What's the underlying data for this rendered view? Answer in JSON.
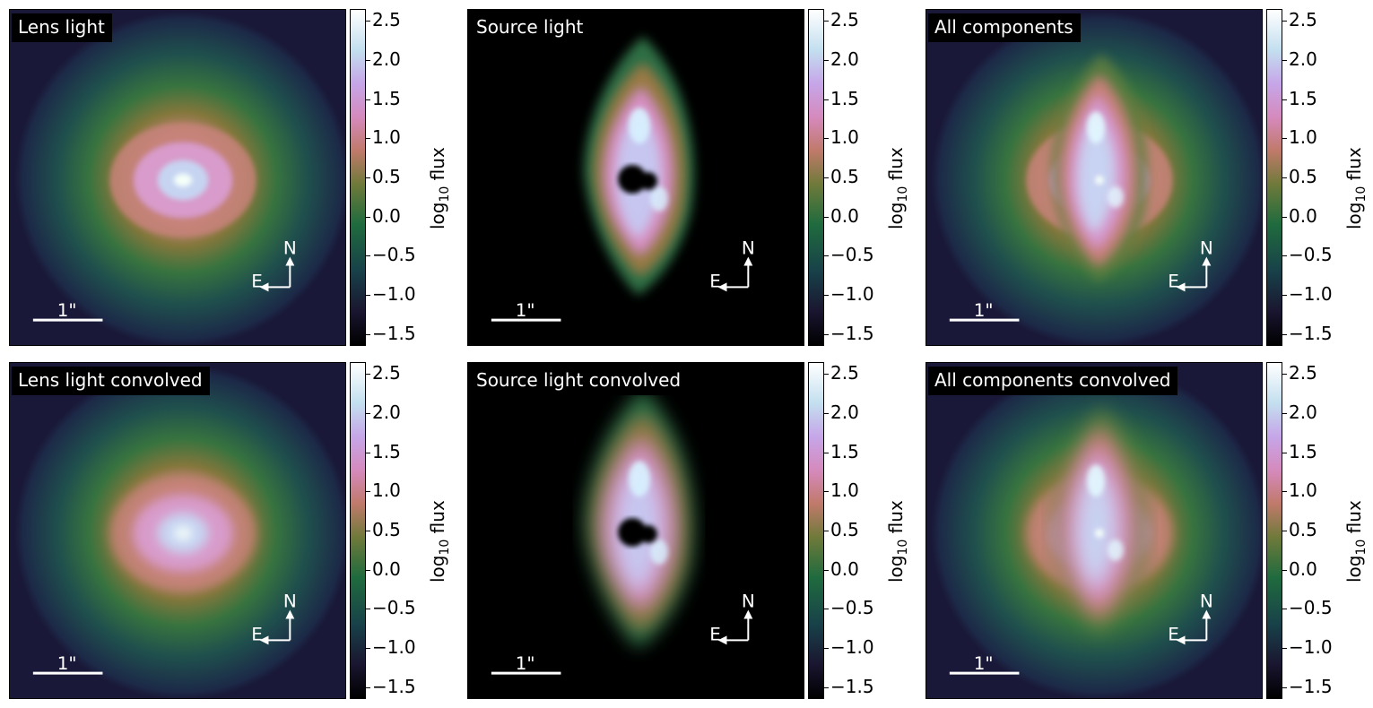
{
  "figure": {
    "colormap": "cubehelix",
    "cbar_label_main": "log",
    "cbar_label_sub": "10",
    "cbar_label_rest": " flux",
    "cbar_ticks": [
      "2.5",
      "2.0",
      "1.5",
      "1.0",
      "0.5",
      "0.0",
      "−0.5",
      "−1.0",
      "−1.5"
    ],
    "cbar_tick_values": [
      2.5,
      2.0,
      1.5,
      1.0,
      0.5,
      0.0,
      -0.5,
      -1.0,
      -1.5
    ],
    "cbar_range": [
      -1.65,
      2.65
    ],
    "scale_bar_label": "1\"",
    "compass_north": "N",
    "compass_east": "E"
  },
  "panels": [
    {
      "id": "lens",
      "title": "Lens light",
      "kind": "lens"
    },
    {
      "id": "source",
      "title": "Source light",
      "kind": "source"
    },
    {
      "id": "all",
      "title": "All components",
      "kind": "all"
    },
    {
      "id": "lens-conv",
      "title": "Lens light convolved",
      "kind": "lens"
    },
    {
      "id": "source-conv",
      "title": "Source light convolved",
      "kind": "source"
    },
    {
      "id": "all-conv",
      "title": "All components convolved",
      "kind": "all"
    }
  ],
  "chart_data": {
    "type": "heatmap",
    "colorbar": {
      "label": "log10 flux",
      "range": [
        -1.65,
        2.65
      ],
      "ticks": [
        2.5,
        2.0,
        1.5,
        1.0,
        0.5,
        0.0,
        -0.5,
        -1.0,
        -1.5
      ]
    },
    "images": [
      {
        "title": "Lens light"
      },
      {
        "title": "Source light"
      },
      {
        "title": "All components"
      },
      {
        "title": "Lens light convolved"
      },
      {
        "title": "Source light convolved"
      },
      {
        "title": "All components convolved"
      }
    ]
  }
}
